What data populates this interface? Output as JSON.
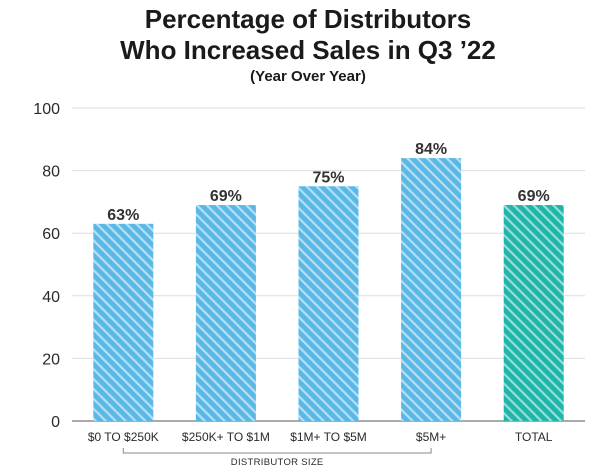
{
  "chart_data": {
    "type": "bar",
    "title": [
      "Percentage of Distributors",
      "Who Increased Sales in Q3 ’22"
    ],
    "subtitle": "(Year Over Year)",
    "categories": [
      "$0 TO $250K",
      "$250K+ TO $1M",
      "$1M+ TO $5M",
      "$5M+",
      "TOTAL"
    ],
    "values": [
      63,
      69,
      75,
      84,
      69
    ],
    "data_labels": [
      "63%",
      "69%",
      "75%",
      "84%",
      "69%"
    ],
    "bar_colors": [
      "#5ab8e6",
      "#5ab8e6",
      "#5ab8e6",
      "#5ab8e6",
      "#1fb5a8"
    ],
    "y_ticks": [
      0,
      20,
      40,
      60,
      80,
      100
    ],
    "ylim": [
      0,
      100
    ],
    "grid": true,
    "pattern": "diagonal-hatch",
    "group_label": "DISTRIBUTOR SIZE"
  }
}
